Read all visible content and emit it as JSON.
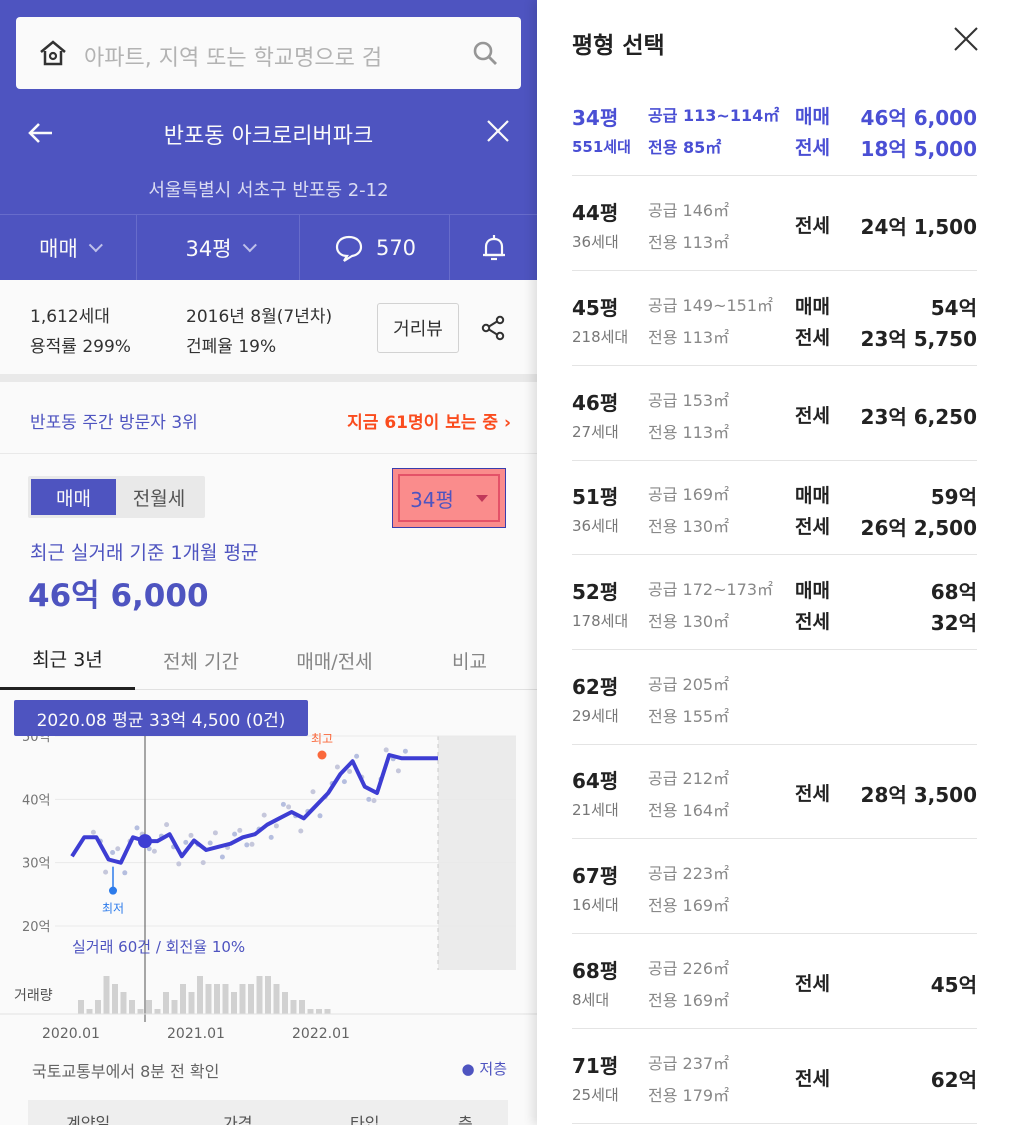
{
  "search": {
    "placeholder": "아파트, 지역 또는 학교명으로 검"
  },
  "header": {
    "complex_name": "반포동 아크로리버파크",
    "address": "서울특별시 서초구 반포동 2-12"
  },
  "tabs": {
    "deal_type": "매매",
    "size": "34평",
    "comments": "570"
  },
  "info": {
    "households": "1,612세대",
    "far": "용적률 299%",
    "built": "2016년 8월(7년차)",
    "bcr": "건폐율 19%",
    "distance_button": "거리뷰"
  },
  "visitors": {
    "rank": "반포동 주간 방문자 3위",
    "now_viewing": "지금 61명이 보는 중"
  },
  "price_segment": {
    "sale": "매매",
    "rent": "전월세",
    "size_selector": "34평"
  },
  "average": {
    "label": "최근 실거래 기준 1개월 평균",
    "value": "46억 6,000"
  },
  "period_tabs": [
    "최근 3년",
    "전체 기간",
    "매매/전세",
    "비교"
  ],
  "tooltip": "2020.08 평균 33억 4,500 (0건)",
  "chart_data": {
    "type": "line",
    "y_ticks": [
      "40억",
      "30억",
      "20억"
    ],
    "y_top_partial": "50억",
    "x_ticks": [
      "2020.01",
      "2021.01",
      "2022.01"
    ],
    "ylim": [
      20,
      50
    ],
    "series": [
      {
        "x": [
          "2020.01",
          "2020.02",
          "2020.03",
          "2020.04",
          "2020.05",
          "2020.06",
          "2020.07",
          "2020.08",
          "2020.09",
          "2020.10",
          "2020.11",
          "2020.12",
          "2021.01",
          "2021.02",
          "2021.03",
          "2021.04",
          "2021.05",
          "2021.06",
          "2021.07",
          "2021.08",
          "2021.09",
          "2021.10",
          "2021.11",
          "2021.12",
          "2022.01",
          "2022.02",
          "2022.03",
          "2022.04",
          "2022.05",
          "2022.06",
          "2022.07",
          "2022.08",
          "2022.09",
          "2022.10",
          "2022.11",
          "2022.12"
        ],
        "values": [
          31,
          34,
          34,
          30.5,
          30,
          34,
          33.4,
          33.4,
          34.5,
          31,
          33.5,
          32,
          32.5,
          33,
          34,
          34.5,
          36,
          37,
          38,
          37,
          39,
          41,
          44,
          46,
          42,
          41,
          47,
          46.5,
          46.5,
          46.5,
          46.5,
          46.5,
          46.5,
          46.5,
          46.5,
          46.5
        ]
      }
    ],
    "markers": {
      "high": "최고",
      "low": "최저"
    },
    "volume_label": "거래량",
    "volume": [
      1,
      0,
      1,
      4,
      3,
      2,
      1,
      0,
      1,
      0,
      2,
      1,
      3,
      2,
      4,
      3,
      3,
      3,
      2,
      3,
      3,
      4,
      4,
      3,
      2,
      1,
      1,
      0,
      0,
      0,
      0,
      0,
      0,
      0,
      0,
      0
    ],
    "summary": "실거래 60건 / 회전율 10%"
  },
  "footer": {
    "note": "국토교통부에서 8분 전 확인",
    "legend": "● 저층"
  },
  "table_head": [
    "계약일",
    "가격",
    "타입",
    "층"
  ],
  "panel": {
    "title": "평형 선택",
    "rows": [
      {
        "py": "34평",
        "hh": "551세대",
        "sup": "공급 113~114㎡",
        "exc": "전용 85㎡",
        "t1": "매매",
        "p1": "46억 6,000",
        "t2": "전세",
        "p2": "18억 5,000",
        "selected": true
      },
      {
        "py": "44평",
        "hh": "36세대",
        "sup": "공급 146㎡",
        "exc": "전용 113㎡",
        "t1": "전세",
        "p1": "24억 1,500",
        "t2": "",
        "p2": ""
      },
      {
        "py": "45평",
        "hh": "218세대",
        "sup": "공급 149~151㎡",
        "exc": "전용 113㎡",
        "t1": "매매",
        "p1": "54억",
        "t2": "전세",
        "p2": "23억 5,750"
      },
      {
        "py": "46평",
        "hh": "27세대",
        "sup": "공급 153㎡",
        "exc": "전용 113㎡",
        "t1": "전세",
        "p1": "23억 6,250",
        "t2": "",
        "p2": ""
      },
      {
        "py": "51평",
        "hh": "36세대",
        "sup": "공급 169㎡",
        "exc": "전용 130㎡",
        "t1": "매매",
        "p1": "59억",
        "t2": "전세",
        "p2": "26억 2,500"
      },
      {
        "py": "52평",
        "hh": "178세대",
        "sup": "공급 172~173㎡",
        "exc": "전용 130㎡",
        "t1": "매매",
        "p1": "68억",
        "t2": "전세",
        "p2": "32억"
      },
      {
        "py": "62평",
        "hh": "29세대",
        "sup": "공급 205㎡",
        "exc": "전용 155㎡",
        "t1": "",
        "p1": "",
        "t2": "",
        "p2": ""
      },
      {
        "py": "64평",
        "hh": "21세대",
        "sup": "공급 212㎡",
        "exc": "전용 164㎡",
        "t1": "전세",
        "p1": "28억 3,500",
        "t2": "",
        "p2": ""
      },
      {
        "py": "67평",
        "hh": "16세대",
        "sup": "공급 223㎡",
        "exc": "전용 169㎡",
        "t1": "",
        "p1": "",
        "t2": "",
        "p2": ""
      },
      {
        "py": "68평",
        "hh": "8세대",
        "sup": "공급 226㎡",
        "exc": "전용 169㎡",
        "t1": "전세",
        "p1": "45억",
        "t2": "",
        "p2": ""
      },
      {
        "py": "71평",
        "hh": "25세대",
        "sup": "공급 237㎡",
        "exc": "전용 179㎡",
        "t1": "전세",
        "p1": "62억",
        "t2": "",
        "p2": ""
      }
    ]
  },
  "colors": {
    "brand": "#5056c4",
    "accent_orange": "#ff4e1f",
    "selected_text": "#4a4fd4"
  }
}
